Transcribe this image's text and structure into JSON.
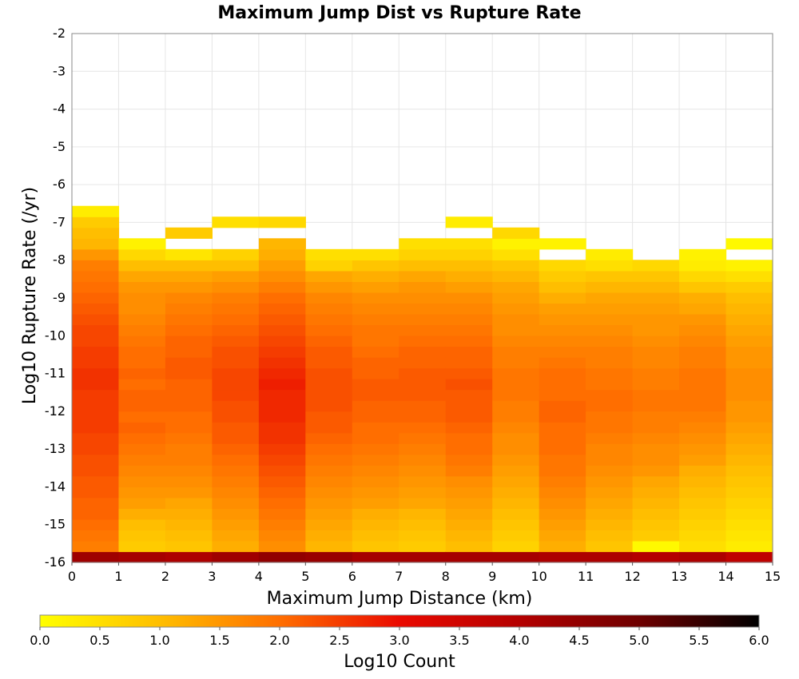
{
  "chart_data": {
    "type": "heatmap",
    "title": "Maximum Jump Dist vs Rupture Rate",
    "xlabel": "Maximum Jump Distance (km)",
    "ylabel": "Log10 Rupture Rate (/yr)",
    "xlim": [
      0,
      15
    ],
    "ylim": [
      -16,
      -2
    ],
    "x_ticks": [
      "0",
      "1",
      "2",
      "3",
      "4",
      "5",
      "6",
      "7",
      "8",
      "9",
      "10",
      "11",
      "12",
      "13",
      "14",
      "15"
    ],
    "y_ticks": [
      "-2",
      "-3",
      "-4",
      "-5",
      "-6",
      "-7",
      "-8",
      "-9",
      "-10",
      "-11",
      "-12",
      "-13",
      "-14",
      "-15",
      "-16"
    ],
    "x_bin_width": 1,
    "y_bin_start": -16,
    "y_bin_width": 0.286,
    "grid": true,
    "colorscale": {
      "label": "Log10 Count",
      "min": 0.0,
      "max": 6.0,
      "ticks": [
        "0.0",
        "0.5",
        "1.0",
        "1.5",
        "2.0",
        "2.5",
        "3.0",
        "3.5",
        "4.0",
        "4.5",
        "5.0",
        "5.5",
        "6.0"
      ],
      "stops": [
        {
          "v": 0.0,
          "c": "#ffff00"
        },
        {
          "v": 1.0,
          "c": "#ffbe00"
        },
        {
          "v": 2.0,
          "c": "#ff6e00"
        },
        {
          "v": 3.0,
          "c": "#ea0a00"
        },
        {
          "v": 4.0,
          "c": "#b40000"
        },
        {
          "v": 5.0,
          "c": "#6e0000"
        },
        {
          "v": 6.0,
          "c": "#000000"
        }
      ]
    },
    "columns": [
      {
        "x": 0,
        "values": [
          4.3,
          1.8,
          1.9,
          2.0,
          2.1,
          2.1,
          2.2,
          2.2,
          2.3,
          2.3,
          2.4,
          2.4,
          2.5,
          2.5,
          2.5,
          2.5,
          2.6,
          2.6,
          2.5,
          2.5,
          2.4,
          2.4,
          2.3,
          2.2,
          2.1,
          2.0,
          1.9,
          1.8,
          1.5,
          1.1,
          1.0,
          0.8,
          0.3,
          null,
          null,
          null,
          null,
          null,
          null,
          null,
          null,
          null,
          null,
          null,
          null,
          null,
          null,
          null,
          null
        ]
      },
      {
        "x": 1,
        "values": [
          4.2,
          0.8,
          0.9,
          1.0,
          1.2,
          1.4,
          1.5,
          1.6,
          1.7,
          1.8,
          1.9,
          2.0,
          2.1,
          2.0,
          2.1,
          2.1,
          2.0,
          2.1,
          2.0,
          2.0,
          1.9,
          1.8,
          1.7,
          1.6,
          1.6,
          1.5,
          1.3,
          1.0,
          0.6,
          0.2,
          null,
          null,
          null,
          null,
          null,
          null,
          null,
          null,
          null,
          null,
          null,
          null,
          null,
          null,
          null,
          null,
          null,
          null,
          null
        ]
      },
      {
        "x": 2,
        "values": [
          4.1,
          0.9,
          1.0,
          1.1,
          1.2,
          1.3,
          1.5,
          1.6,
          1.7,
          1.8,
          1.8,
          1.9,
          2.0,
          2.0,
          2.1,
          2.1,
          2.1,
          2.2,
          2.2,
          2.1,
          2.1,
          2.0,
          1.9,
          1.8,
          1.7,
          1.5,
          1.3,
          1.0,
          0.4,
          null,
          0.8,
          null,
          null,
          null,
          null,
          null,
          null,
          null,
          null,
          null,
          null,
          null,
          null,
          null,
          null,
          null,
          null,
          null,
          null
        ]
      },
      {
        "x": 3,
        "values": [
          4.3,
          1.2,
          1.3,
          1.4,
          1.5,
          1.6,
          1.7,
          1.8,
          1.9,
          2.0,
          2.1,
          2.2,
          2.2,
          2.3,
          2.3,
          2.4,
          2.4,
          2.4,
          2.3,
          2.3,
          2.2,
          2.1,
          2.0,
          1.9,
          1.8,
          1.6,
          1.4,
          1.0,
          0.7,
          null,
          null,
          0.5,
          null,
          null,
          null,
          null,
          null,
          null,
          null,
          null,
          null,
          null,
          null,
          null,
          null,
          null,
          null,
          null,
          null
        ]
      },
      {
        "x": 4,
        "values": [
          4.5,
          1.6,
          1.7,
          1.8,
          1.9,
          2.0,
          2.1,
          2.2,
          2.3,
          2.4,
          2.5,
          2.6,
          2.6,
          2.7,
          2.7,
          2.7,
          2.8,
          2.7,
          2.6,
          2.5,
          2.4,
          2.3,
          2.2,
          2.1,
          2.0,
          1.8,
          1.6,
          1.4,
          1.2,
          1.1,
          null,
          0.6,
          null,
          null,
          null,
          null,
          null,
          null,
          null,
          null,
          null,
          null,
          null,
          null,
          null,
          null,
          null,
          null,
          null
        ]
      },
      {
        "x": 5,
        "values": [
          4.4,
          1.1,
          1.2,
          1.3,
          1.4,
          1.5,
          1.6,
          1.7,
          1.8,
          1.9,
          2.0,
          2.1,
          2.2,
          2.2,
          2.3,
          2.3,
          2.3,
          2.3,
          2.2,
          2.2,
          2.1,
          2.0,
          1.9,
          1.8,
          1.7,
          1.5,
          1.3,
          0.7,
          0.5,
          null,
          null,
          null,
          null,
          null,
          null,
          null,
          null,
          null,
          null,
          null,
          null,
          null,
          null,
          null,
          null,
          null,
          null,
          null,
          null
        ]
      },
      {
        "x": 6,
        "values": [
          4.2,
          0.9,
          1.0,
          1.1,
          1.2,
          1.4,
          1.5,
          1.6,
          1.7,
          1.8,
          1.9,
          2.0,
          2.0,
          2.1,
          2.1,
          2.2,
          2.2,
          2.1,
          2.1,
          2.0,
          1.9,
          1.9,
          1.8,
          1.7,
          1.6,
          1.4,
          1.2,
          0.9,
          0.5,
          null,
          null,
          null,
          null,
          null,
          null,
          null,
          null,
          null,
          null,
          null,
          null,
          null,
          null,
          null,
          null,
          null,
          null,
          null,
          null
        ]
      },
      {
        "x": 7,
        "values": [
          4.2,
          0.8,
          0.9,
          1.0,
          1.1,
          1.3,
          1.4,
          1.5,
          1.6,
          1.7,
          1.8,
          1.9,
          2.0,
          2.1,
          2.1,
          2.2,
          2.2,
          2.2,
          2.1,
          2.1,
          2.0,
          1.9,
          1.8,
          1.7,
          1.6,
          1.5,
          1.3,
          1.0,
          0.7,
          0.5,
          null,
          null,
          null,
          null,
          null,
          null,
          null,
          null,
          null,
          null,
          null,
          null,
          null,
          null,
          null,
          null,
          null,
          null,
          null
        ]
      },
      {
        "x": 8,
        "values": [
          4.2,
          1.0,
          1.1,
          1.2,
          1.3,
          1.4,
          1.5,
          1.6,
          1.8,
          1.9,
          2.0,
          2.0,
          2.1,
          2.2,
          2.2,
          2.2,
          2.3,
          2.2,
          2.1,
          2.1,
          2.0,
          1.9,
          1.8,
          1.7,
          1.6,
          1.4,
          1.2,
          1.0,
          0.7,
          0.5,
          null,
          0.3,
          null,
          null,
          null,
          null,
          null,
          null,
          null,
          null,
          null,
          null,
          null,
          null,
          null,
          null,
          null,
          null,
          null
        ]
      },
      {
        "x": 9,
        "values": [
          4.2,
          0.7,
          0.8,
          0.9,
          1.0,
          1.1,
          1.2,
          1.3,
          1.4,
          1.5,
          1.6,
          1.6,
          1.7,
          1.8,
          1.8,
          1.9,
          1.9,
          1.9,
          1.8,
          1.8,
          1.7,
          1.6,
          1.6,
          1.5,
          1.4,
          1.3,
          1.1,
          0.9,
          0.5,
          0.2,
          0.6,
          null,
          null,
          null,
          null,
          null,
          null,
          null,
          null,
          null,
          null,
          null,
          null,
          null,
          null,
          null,
          null,
          null,
          null
        ]
      },
      {
        "x": 10,
        "values": [
          4.1,
          1.2,
          1.3,
          1.4,
          1.5,
          1.6,
          1.7,
          1.8,
          1.9,
          1.9,
          2.0,
          2.0,
          2.0,
          2.1,
          2.1,
          2.0,
          2.0,
          2.0,
          1.9,
          1.8,
          1.7,
          1.6,
          1.5,
          1.4,
          1.2,
          1.0,
          0.8,
          0.6,
          null,
          0.2,
          null,
          null,
          null,
          null,
          null,
          null,
          null,
          null,
          null,
          null,
          null,
          null,
          null,
          null,
          null,
          null,
          null,
          null,
          null
        ]
      },
      {
        "x": 11,
        "values": [
          4.1,
          0.9,
          1.0,
          1.1,
          1.2,
          1.3,
          1.4,
          1.5,
          1.6,
          1.7,
          1.7,
          1.8,
          1.9,
          1.9,
          2.0,
          2.0,
          1.9,
          1.9,
          1.8,
          1.8,
          1.7,
          1.6,
          1.5,
          1.4,
          1.3,
          1.1,
          0.9,
          0.5,
          0.3,
          null,
          null,
          null,
          null,
          null,
          null,
          null,
          null,
          null,
          null,
          null,
          null,
          null,
          null,
          null,
          null,
          null,
          null,
          null,
          null
        ]
      },
      {
        "x": 12,
        "values": [
          4.0,
          0.1,
          0.8,
          0.9,
          1.0,
          1.1,
          1.2,
          1.3,
          1.5,
          1.6,
          1.6,
          1.7,
          1.8,
          1.8,
          1.9,
          1.9,
          1.8,
          1.8,
          1.7,
          1.7,
          1.6,
          1.5,
          1.5,
          1.4,
          1.3,
          1.1,
          0.9,
          0.6,
          null,
          null,
          null,
          null,
          null,
          null,
          null,
          null,
          null,
          null,
          null,
          null,
          null,
          null,
          null,
          null,
          null,
          null,
          null,
          null,
          null
        ]
      },
      {
        "x": 13,
        "values": [
          4.1,
          0.5,
          0.6,
          0.7,
          0.8,
          0.9,
          1.0,
          1.1,
          1.2,
          1.4,
          1.5,
          1.6,
          1.7,
          1.8,
          1.9,
          1.9,
          1.9,
          1.9,
          1.8,
          1.8,
          1.7,
          1.6,
          1.5,
          1.3,
          1.2,
          0.9,
          0.6,
          0.3,
          0.2,
          null,
          null,
          null,
          null,
          null,
          null,
          null,
          null,
          null,
          null,
          null,
          null,
          null,
          null,
          null,
          null,
          null,
          null,
          null,
          null
        ]
      },
      {
        "x": 14,
        "values": [
          3.8,
          0.3,
          0.4,
          0.5,
          0.6,
          0.7,
          0.8,
          0.9,
          1.0,
          1.1,
          1.2,
          1.3,
          1.4,
          1.5,
          1.5,
          1.6,
          1.6,
          1.6,
          1.5,
          1.5,
          1.4,
          1.3,
          1.2,
          1.1,
          1.0,
          0.8,
          0.5,
          0.2,
          null,
          0.1,
          null,
          null,
          null,
          null,
          null,
          null,
          null,
          null,
          null,
          null,
          null,
          null,
          null,
          null,
          null,
          null,
          null,
          null,
          null
        ]
      }
    ]
  }
}
